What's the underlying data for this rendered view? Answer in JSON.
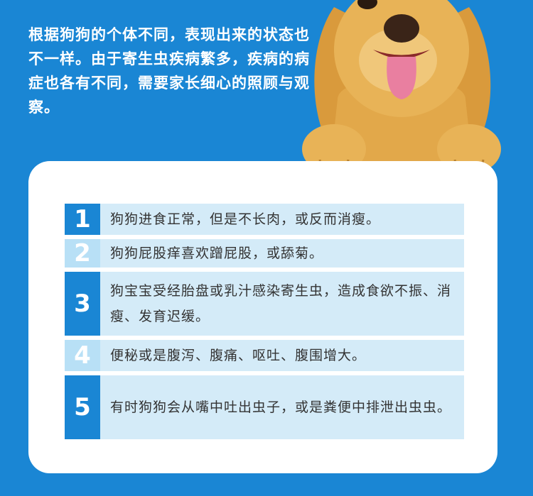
{
  "intro_text": "根据狗狗的个体不同，表现出来的状态也不一样。由于寄生虫疾病繁多，疾病的病症也各有不同，需要家长细心的照顾与观察。",
  "items": [
    {
      "number": "1",
      "text": "狗狗进食正常，但是不长肉，或反而消瘦。"
    },
    {
      "number": "2",
      "text": "狗狗屁股痒喜欢蹭屁股，或舔菊。"
    },
    {
      "number": "3",
      "text": "狗宝宝受经胎盘或乳汁感染寄生虫，造成食欲不振、消瘦、发育迟缓。"
    },
    {
      "number": "4",
      "text": "便秘或是腹泻、腹痛、呕吐、腹围增大。"
    },
    {
      "number": "5",
      "text": "有时狗狗会从嘴中吐出虫子，或是粪便中排泄出虫虫。"
    }
  ],
  "colors": {
    "background": "#1a86d4",
    "row": "#d4ebf8",
    "number_dark": "#1a86d4",
    "number_light": "#b8e0f6",
    "dog": "#e2a84a"
  }
}
